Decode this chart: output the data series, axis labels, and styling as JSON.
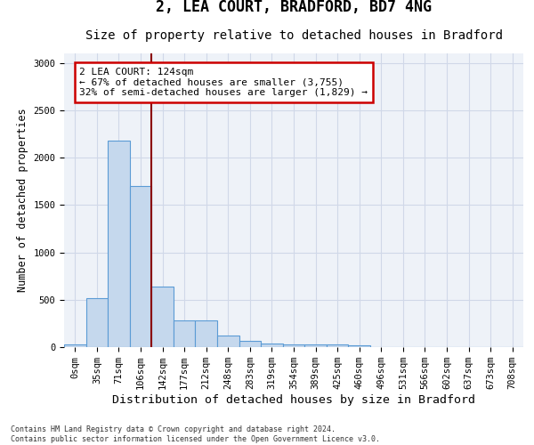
{
  "title": "2, LEA COURT, BRADFORD, BD7 4NG",
  "subtitle": "Size of property relative to detached houses in Bradford",
  "xlabel": "Distribution of detached houses by size in Bradford",
  "ylabel": "Number of detached properties",
  "bar_values": [
    30,
    520,
    2175,
    1700,
    635,
    280,
    280,
    120,
    70,
    40,
    30,
    25,
    25,
    20,
    0,
    0,
    0,
    0,
    0,
    0,
    0
  ],
  "bar_labels": [
    "0sqm",
    "35sqm",
    "71sqm",
    "106sqm",
    "142sqm",
    "177sqm",
    "212sqm",
    "248sqm",
    "283sqm",
    "319sqm",
    "354sqm",
    "389sqm",
    "425sqm",
    "460sqm",
    "496sqm",
    "531sqm",
    "566sqm",
    "602sqm",
    "637sqm",
    "673sqm",
    "708sqm"
  ],
  "ylim": [
    0,
    3100
  ],
  "yticks": [
    0,
    500,
    1000,
    1500,
    2000,
    2500,
    3000
  ],
  "bar_color": "#c5d8ed",
  "bar_edge_color": "#5b9bd5",
  "grid_color": "#d0d8e8",
  "background_color": "#eef2f8",
  "vline_x_index": 3,
  "vline_color": "#8b0000",
  "annotation_text": "2 LEA COURT: 124sqm\n← 67% of detached houses are smaller (3,755)\n32% of semi-detached houses are larger (1,829) →",
  "annotation_box_color": "#ffffff",
  "annotation_box_edge": "#cc0000",
  "footnote": "Contains HM Land Registry data © Crown copyright and database right 2024.\nContains public sector information licensed under the Open Government Licence v3.0.",
  "title_fontsize": 12,
  "subtitle_fontsize": 10,
  "xlabel_fontsize": 9.5,
  "ylabel_fontsize": 8.5,
  "tick_fontsize": 7.5,
  "annot_fontsize": 8
}
